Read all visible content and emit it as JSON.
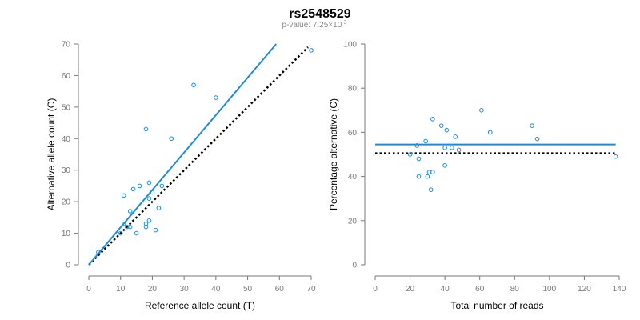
{
  "title": "rs2548529",
  "subtitle": {
    "prefix": "p-value: 7.25×10",
    "exponent": "-3"
  },
  "chart_data": [
    {
      "type": "scatter",
      "xlabel": "Reference allele count (T)",
      "ylabel": "Alternative allele count (C)",
      "xlim": [
        0,
        70
      ],
      "ylim": [
        0,
        70
      ],
      "xticks": [
        0,
        10,
        20,
        30,
        40,
        50,
        60,
        70
      ],
      "yticks": [
        0,
        10,
        20,
        30,
        40,
        50,
        60,
        70
      ],
      "grid": false,
      "points": [
        [
          3,
          4
        ],
        [
          10,
          10
        ],
        [
          11,
          13
        ],
        [
          11,
          22
        ],
        [
          12,
          12
        ],
        [
          13,
          17
        ],
        [
          13,
          12
        ],
        [
          14,
          24
        ],
        [
          15,
          10
        ],
        [
          16,
          25
        ],
        [
          18,
          12
        ],
        [
          18,
          13
        ],
        [
          18,
          43
        ],
        [
          19,
          26
        ],
        [
          19,
          14
        ],
        [
          19,
          21
        ],
        [
          20,
          23
        ],
        [
          21,
          11
        ],
        [
          22,
          18
        ],
        [
          23,
          25
        ],
        [
          26,
          40
        ],
        [
          33,
          57
        ],
        [
          40,
          53
        ],
        [
          70,
          68
        ]
      ],
      "fit_line": [
        [
          0,
          0
        ],
        [
          59,
          70
        ]
      ],
      "reference_line": [
        [
          0,
          0
        ],
        [
          69,
          69
        ]
      ],
      "colors": {
        "points": "#1f8bd8",
        "fit": "#1f8bd8",
        "reference": "#000000"
      }
    },
    {
      "type": "scatter",
      "xlabel": "Total number of reads",
      "ylabel": "Percentage alternative (C)",
      "xlim": [
        0,
        140
      ],
      "ylim": [
        0,
        100
      ],
      "xticks": [
        0,
        20,
        40,
        60,
        80,
        100,
        120,
        140
      ],
      "yticks": [
        0,
        20,
        40,
        60,
        80,
        100
      ],
      "grid": false,
      "points": [
        [
          20,
          50
        ],
        [
          24,
          54
        ],
        [
          25,
          48
        ],
        [
          25,
          40
        ],
        [
          29,
          56
        ],
        [
          30,
          40
        ],
        [
          31,
          42
        ],
        [
          32,
          34
        ],
        [
          33,
          42
        ],
        [
          33,
          66
        ],
        [
          38,
          63
        ],
        [
          40,
          53
        ],
        [
          40,
          45
        ],
        [
          41,
          61
        ],
        [
          44,
          53
        ],
        [
          46,
          58
        ],
        [
          48,
          52
        ],
        [
          61,
          70
        ],
        [
          66,
          60
        ],
        [
          90,
          63
        ],
        [
          93,
          57
        ],
        [
          138,
          49
        ]
      ],
      "fit_line": [
        [
          0,
          54.5
        ],
        [
          138,
          54.5
        ]
      ],
      "reference_line": [
        [
          0,
          50.5
        ],
        [
          138,
          50.5
        ]
      ],
      "colors": {
        "points": "#1f8bd8",
        "fit": "#1f8bd8",
        "reference": "#000000"
      }
    }
  ]
}
